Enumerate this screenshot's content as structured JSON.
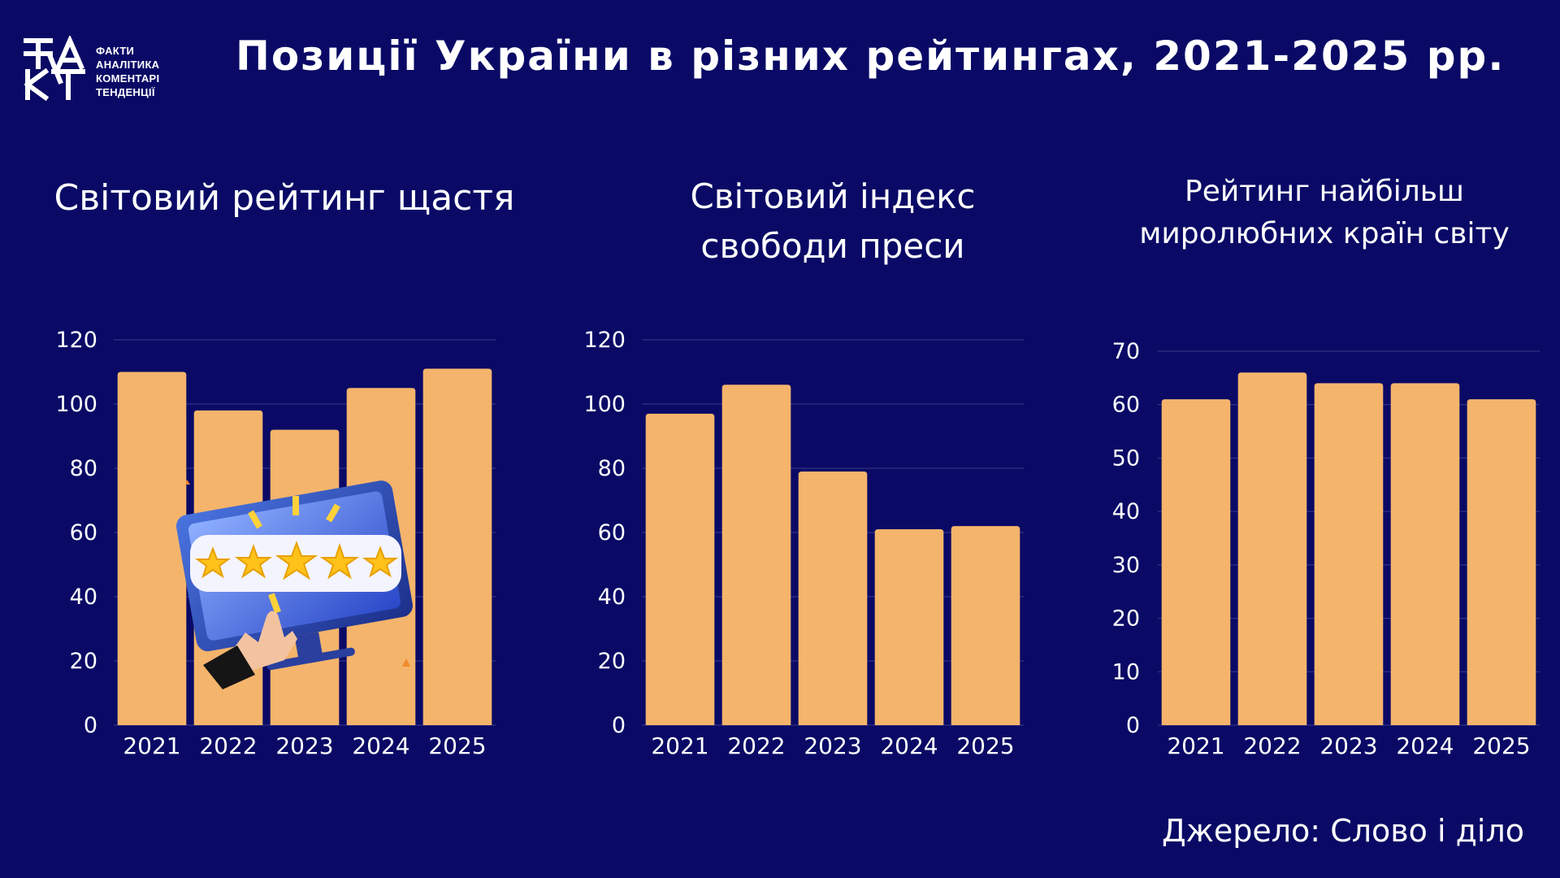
{
  "logo": {
    "lines": [
      "ФАКТИ",
      "АНАЛІТИКА",
      "КОМЕНТАРІ",
      "ТЕНДЕНЦІЇ"
    ]
  },
  "header": {
    "title": "Позиції України в різних рейтингах, 2021-2025 рр."
  },
  "source": "Джерело: Слово і діло",
  "colors": {
    "background": "#0a0a66",
    "bar": "#f4b46c",
    "text": "#ffffff",
    "grid": "#3a3a8a"
  },
  "chart_data": [
    {
      "type": "bar",
      "title_lines": [
        "Світовий рейтинг щастя"
      ],
      "categories": [
        "2021",
        "2022",
        "2023",
        "2024",
        "2025"
      ],
      "values": [
        110,
        98,
        92,
        105,
        111
      ],
      "ylim": [
        0,
        120
      ],
      "yticks": [
        0,
        20,
        40,
        60,
        80,
        100,
        120
      ],
      "grid": true
    },
    {
      "type": "bar",
      "title_lines": [
        "Світовий індекс",
        "свободи преси"
      ],
      "categories": [
        "2021",
        "2022",
        "2023",
        "2024",
        "2025"
      ],
      "values": [
        97,
        106,
        79,
        61,
        62
      ],
      "ylim": [
        0,
        120
      ],
      "yticks": [
        0,
        20,
        40,
        60,
        80,
        100,
        120
      ],
      "grid": true
    },
    {
      "type": "bar",
      "title_lines": [
        "Рейтинг  найбільш",
        "миролюбних країн світу"
      ],
      "categories": [
        "2021",
        "2022",
        "2023",
        "2024",
        "2025"
      ],
      "values": [
        61,
        66,
        64,
        64,
        61
      ],
      "ylim": [
        0,
        70
      ],
      "yticks": [
        0,
        10,
        20,
        30,
        40,
        50,
        60,
        70
      ],
      "grid": true
    }
  ]
}
